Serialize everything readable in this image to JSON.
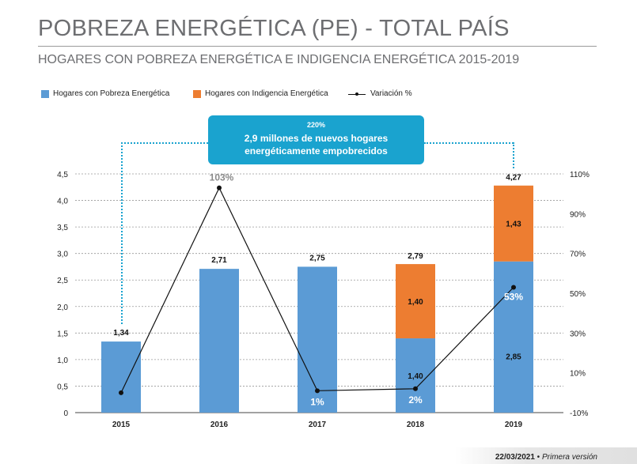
{
  "header": {
    "title": "POBREZA ENERGÉTICA (PE) - TOTAL PAÍS",
    "subtitle": "HOGARES CON POBREZA ENERGÉTICA E INDIGENCIA ENERGÉTICA 2015-2019"
  },
  "legend": {
    "poverty": "Hogares con Pobreza Energética",
    "indigence": "Hogares con Indigencia Energética",
    "variation": "Variación %"
  },
  "callout": {
    "percent": "220%",
    "message": "2,9 millones de nuevos hogares energéticamente empobrecidos"
  },
  "footer": {
    "date": "22/03/2021",
    "separator": "•",
    "version": "Primera versión"
  },
  "colors": {
    "poverty": "#5b9bd5",
    "indigence": "#ed7d31",
    "line": "#111111",
    "callout": "#1aa3cf"
  },
  "chart_data": {
    "type": "bar",
    "stacked": true,
    "categories": [
      "2015",
      "2016",
      "2017",
      "2018",
      "2019"
    ],
    "series": [
      {
        "name": "Hogares con Pobreza Energética",
        "values": [
          1.34,
          2.71,
          2.75,
          1.4,
          2.85
        ]
      },
      {
        "name": "Hogares con Indigencia Energética",
        "values": [
          0,
          0,
          0,
          1.4,
          1.43
        ]
      }
    ],
    "totals": [
      1.34,
      2.71,
      2.75,
      2.79,
      4.27
    ],
    "total_labels": [
      "1,34",
      "2,71",
      "2,75",
      "2,79",
      "4,27"
    ],
    "segment_labels": {
      "poverty": [
        "",
        "",
        "",
        "1,40",
        "2,85"
      ],
      "indigence": [
        "",
        "",
        "",
        "1,40",
        "1,43"
      ]
    },
    "line": {
      "name": "Variación %",
      "values": [
        0,
        103,
        1,
        2,
        53
      ],
      "labels": [
        "",
        "103%",
        "1%",
        "2%",
        "53%"
      ]
    },
    "y_left": {
      "ylim": [
        0,
        4.5
      ],
      "ticks": [
        0,
        0.5,
        1.0,
        1.5,
        2.0,
        2.5,
        3.0,
        3.5,
        4.0,
        4.5
      ],
      "tick_labels": [
        "0",
        "0,5",
        "1,0",
        "1,5",
        "2,0",
        "2,5",
        "3,0",
        "3,5",
        "4,0",
        "4,5"
      ]
    },
    "y_right": {
      "ylim": [
        -10,
        110
      ],
      "ticks": [
        -10,
        10,
        30,
        50,
        70,
        90,
        110
      ],
      "tick_labels": [
        "-10%",
        "10%",
        "30%",
        "50%",
        "70%",
        "90%",
        "110%"
      ]
    },
    "grid": true,
    "legend_position": "top-left"
  }
}
